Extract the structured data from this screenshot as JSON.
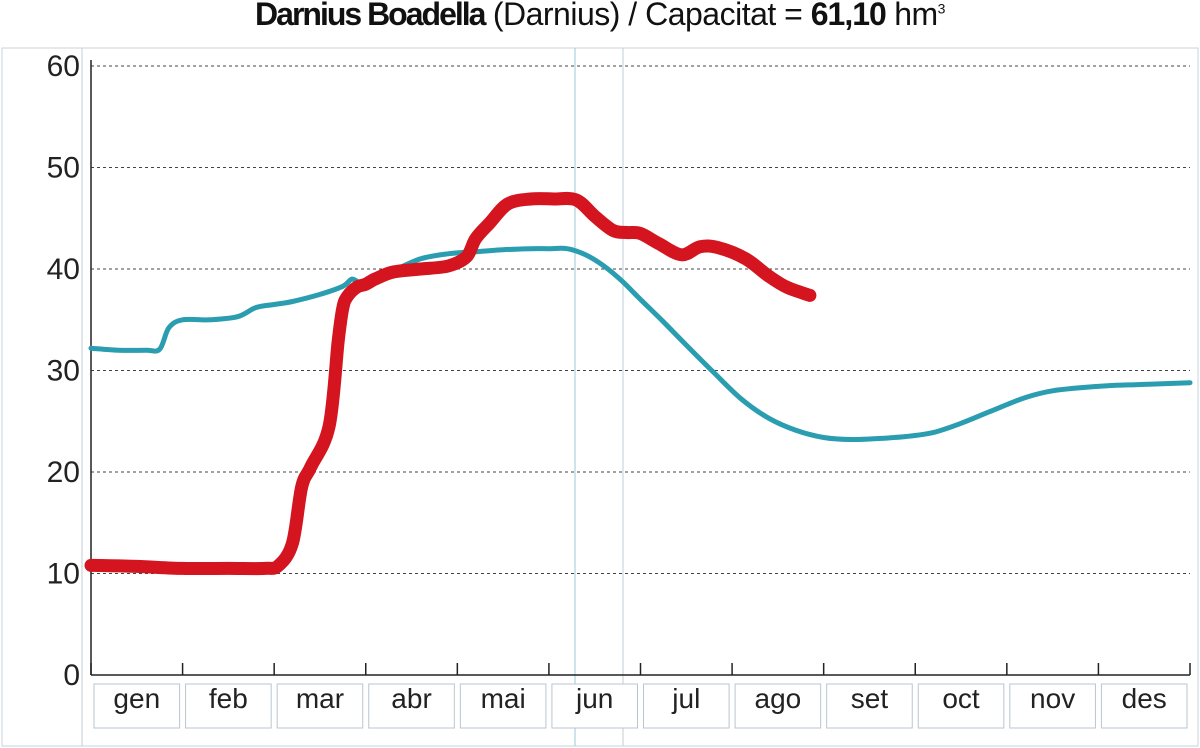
{
  "title": {
    "name": "Darnius Boadella",
    "location": "(Darnius)",
    "separator": " /  Capacitat = ",
    "capacity_value": "61,10",
    "capacity_unit": "hm",
    "capacity_unit_sup": "3"
  },
  "chart_data": {
    "type": "line",
    "title": "Darnius Boadella (Darnius) / Capacitat = 61,10 hm³",
    "xlabel": "",
    "ylabel": "",
    "ylim": [
      0,
      60
    ],
    "xlim": [
      0,
      12
    ],
    "y_ticks": [
      "0",
      "10",
      "20",
      "30",
      "40",
      "50",
      "60"
    ],
    "months": [
      "gen",
      "feb",
      "mar",
      "abr",
      "mai",
      "jun",
      "jul",
      "ago",
      "set",
      "oct",
      "nov",
      "des"
    ],
    "grid": "horizontal-dashed",
    "series": [
      {
        "color": "#2a9db0",
        "x": [
          0,
          0.3,
          0.6,
          0.75,
          0.85,
          1.0,
          1.3,
          1.6,
          1.8,
          2.0,
          2.2,
          2.5,
          2.75,
          2.85,
          2.95,
          3.1,
          3.3,
          3.6,
          3.9,
          4.2,
          4.5,
          4.8,
          5.0,
          5.2,
          5.4,
          5.6,
          5.8,
          6.0,
          6.25,
          6.5,
          6.8,
          7.1,
          7.4,
          7.7,
          8.0,
          8.3,
          8.6,
          8.9,
          9.2,
          9.5,
          9.8,
          10.1,
          10.3,
          10.5,
          10.8,
          11.1,
          11.4,
          11.7,
          12.0
        ],
        "values": [
          32.2,
          32,
          32,
          32.1,
          34.2,
          35,
          35,
          35.3,
          36.2,
          36.5,
          36.8,
          37.5,
          38.3,
          39,
          38.6,
          38.8,
          39.8,
          41,
          41.5,
          41.7,
          41.9,
          42,
          42,
          42,
          41.4,
          40.3,
          38.8,
          37,
          34.8,
          32.5,
          29.8,
          27.2,
          25.3,
          24.1,
          23.4,
          23.2,
          23.3,
          23.5,
          23.9,
          24.8,
          25.9,
          27,
          27.6,
          28,
          28.3,
          28.5,
          28.6,
          28.7,
          28.8
        ]
      },
      {
        "color": "#d4141f",
        "x": [
          0,
          0.5,
          1.0,
          1.5,
          1.9,
          2.05,
          2.2,
          2.3,
          2.4,
          2.6,
          2.7,
          2.75,
          2.8,
          2.9,
          3.0,
          3.1,
          3.3,
          3.6,
          3.9,
          4.1,
          4.2,
          4.35,
          4.55,
          4.8,
          5.05,
          5.3,
          5.5,
          5.7,
          5.85,
          6.0,
          6.2,
          6.45,
          6.65,
          6.85,
          7.15,
          7.4,
          7.6,
          7.85
        ],
        "values": [
          10.8,
          10.7,
          10.5,
          10.5,
          10.5,
          10.8,
          13,
          18.5,
          20.5,
          24.5,
          33,
          36.2,
          37.3,
          38.2,
          38.5,
          39,
          39.7,
          40,
          40.3,
          41.2,
          43,
          44.5,
          46.4,
          46.9,
          46.9,
          46.8,
          45.2,
          43.8,
          43.6,
          43.5,
          42.5,
          41.4,
          42.2,
          42.1,
          41,
          39.3,
          38.2,
          37.4
        ]
      }
    ]
  }
}
